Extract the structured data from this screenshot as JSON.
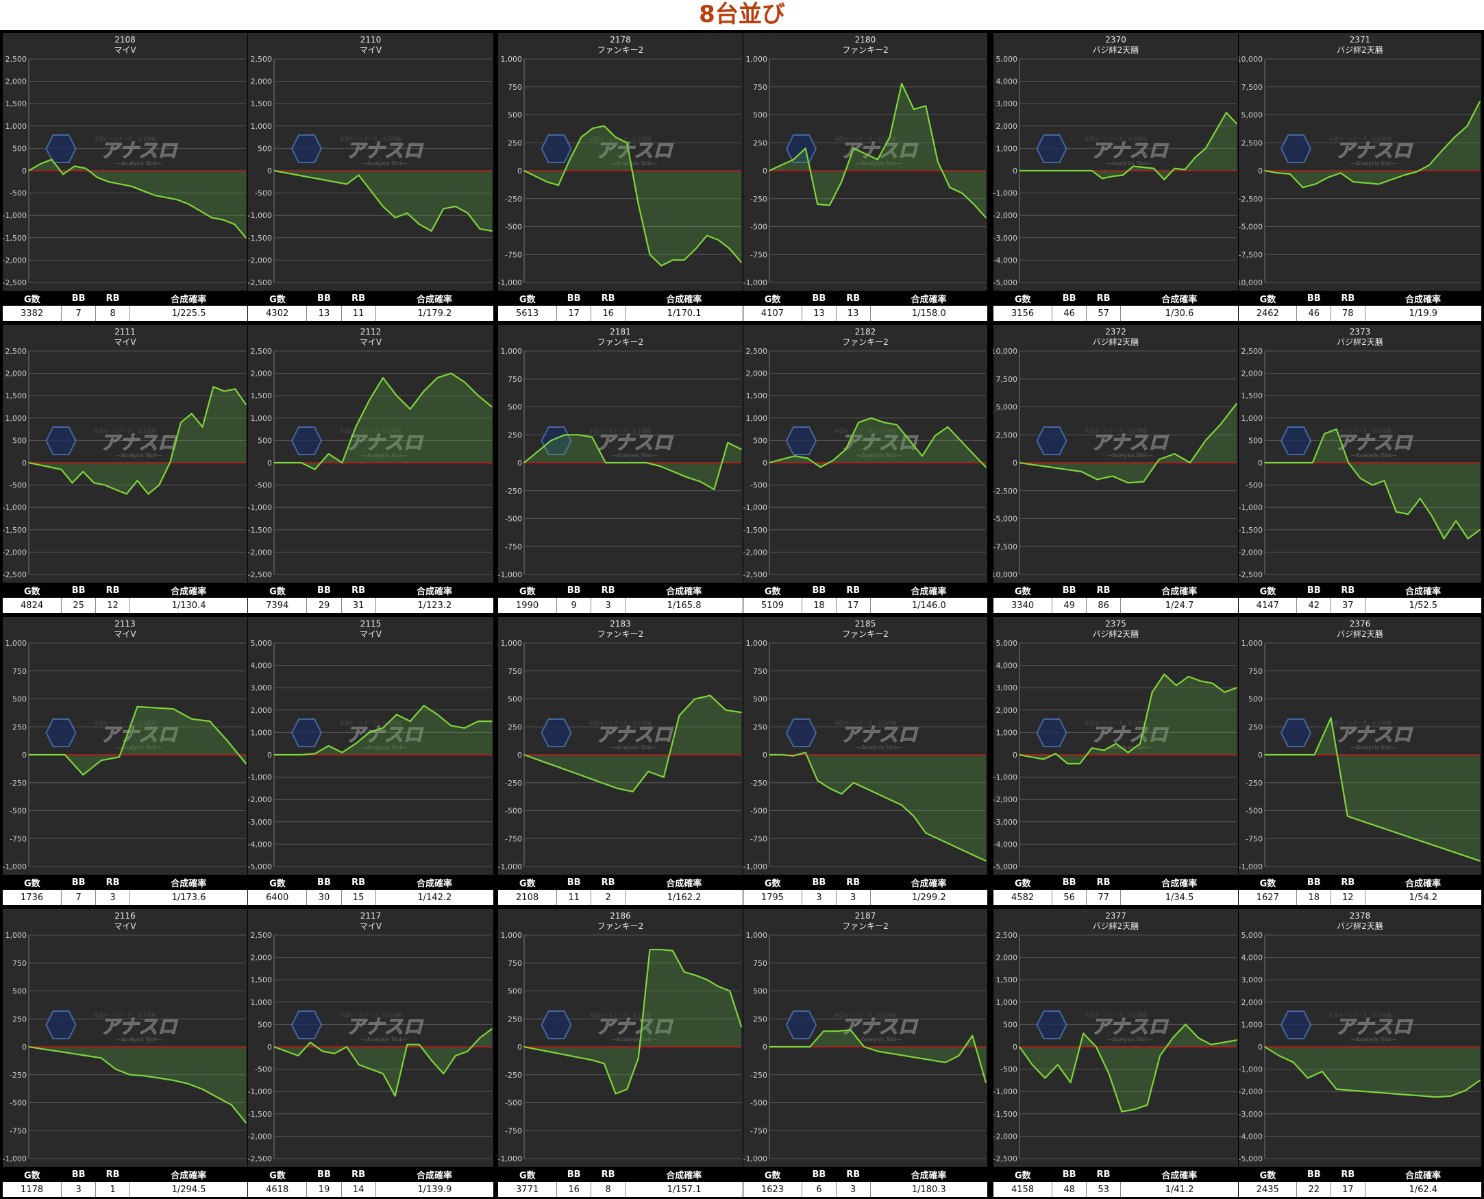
{
  "page_title": "8台並び",
  "watermark": {
    "main": "アナスロ",
    "sub": "―Analysis Slot―",
    "top": "全国ホールデータ・出玉情報"
  },
  "stat_headers": [
    "G数",
    "BB",
    "RB",
    "合成確率"
  ],
  "colors": {
    "line": "#7ed63a",
    "fill": "rgba(90,170,60,0.28)",
    "zero_line": "#c41a1a",
    "grid": "#575757",
    "panel_bg": "#2a2a2a",
    "title": "#b8400f"
  },
  "chart_data": [
    {
      "type": "area",
      "machine_no": "2108",
      "machine_name": "マイV",
      "ylim": [
        -2500,
        2500
      ],
      "y_ticks": [
        "2,500",
        "2,000",
        "1,500",
        "1,000",
        "500",
        "0",
        "-500",
        "-1,000",
        "-1,500",
        "-2,000",
        "-2,500"
      ],
      "values": [
        0,
        150,
        250,
        -80,
        100,
        50,
        -150,
        -250,
        -300,
        -350,
        -450,
        -550,
        -600,
        -650,
        -750,
        -900,
        -1050,
        -1100,
        -1200,
        -1500
      ],
      "stats": {
        "g": "3382",
        "bb": "7",
        "rb": "8",
        "prob": "1/225.5"
      }
    },
    {
      "type": "area",
      "machine_no": "2110",
      "machine_name": "マイV",
      "ylim": [
        -2500,
        2500
      ],
      "y_ticks": [
        "2,500",
        "2,000",
        "1,500",
        "1,000",
        "500",
        "0",
        "-500",
        "-1,000",
        "-1,500",
        "-2,000",
        "-2,500"
      ],
      "values": [
        0,
        -50,
        -100,
        -150,
        -200,
        -250,
        -300,
        -100,
        -450,
        -800,
        -1050,
        -950,
        -1200,
        -1350,
        -850,
        -800,
        -950,
        -1300,
        -1350
      ],
      "stats": {
        "g": "4302",
        "bb": "13",
        "rb": "11",
        "prob": "1/179.2"
      }
    },
    {
      "type": "area",
      "machine_no": "2178",
      "machine_name": "ファンキー2",
      "ylim": [
        -1000,
        1000
      ],
      "y_ticks": [
        "1,000",
        "750",
        "500",
        "250",
        "0",
        "-250",
        "-500",
        "-750",
        "-1,000"
      ],
      "values": [
        0,
        -50,
        -100,
        -130,
        100,
        300,
        380,
        400,
        300,
        250,
        -300,
        -750,
        -850,
        -800,
        -800,
        -700,
        -580,
        -620,
        -700,
        -820
      ],
      "stats": {
        "g": "5613",
        "bb": "17",
        "rb": "16",
        "prob": "1/170.1"
      }
    },
    {
      "type": "area",
      "machine_no": "2180",
      "machine_name": "ファンキー2",
      "ylim": [
        -1000,
        1000
      ],
      "y_ticks": [
        "1,000",
        "750",
        "500",
        "250",
        "0",
        "-250",
        "-500",
        "-750",
        "-1,000"
      ],
      "values": [
        0,
        50,
        100,
        200,
        -300,
        -310,
        -100,
        200,
        150,
        100,
        300,
        780,
        550,
        580,
        80,
        -150,
        -200,
        -300,
        -420
      ],
      "stats": {
        "g": "4107",
        "bb": "13",
        "rb": "13",
        "prob": "1/158.0"
      }
    },
    {
      "type": "area",
      "machine_no": "2370",
      "machine_name": "バジ絆2天膳",
      "ylim": [
        -5000,
        5000
      ],
      "y_ticks": [
        "5,000",
        "4,000",
        "3,000",
        "2,000",
        "1,000",
        "0",
        "-1,000",
        "-2,000",
        "-3,000",
        "-4,000",
        "-5,000"
      ],
      "values": [
        0,
        0,
        0,
        0,
        0,
        0,
        0,
        0,
        -350,
        -250,
        -200,
        200,
        150,
        100,
        -400,
        100,
        50,
        600,
        1000,
        1800,
        2600,
        2100
      ],
      "stats": {
        "g": "3156",
        "bb": "46",
        "rb": "57",
        "prob": "1/30.6"
      }
    },
    {
      "type": "area",
      "machine_no": "2371",
      "machine_name": "バジ絆2天膳",
      "ylim": [
        -10000,
        10000
      ],
      "y_ticks": [
        "10,000",
        "7,500",
        "5,000",
        "2,500",
        "0",
        "-2,500",
        "-5,000",
        "-7,500",
        "-10,000"
      ],
      "values": [
        0,
        -200,
        -300,
        -1500,
        -1200,
        -600,
        -200,
        -1000,
        -1100,
        -1200,
        -800,
        -400,
        -100,
        500,
        1800,
        3000,
        4000,
        6200
      ],
      "stats": {
        "g": "2462",
        "bb": "46",
        "rb": "78",
        "prob": "1/19.9"
      }
    },
    {
      "type": "area",
      "machine_no": "2111",
      "machine_name": "マイV",
      "ylim": [
        -2500,
        2500
      ],
      "y_ticks": [
        "2,500",
        "2,000",
        "1,500",
        "1,000",
        "500",
        "0",
        "-500",
        "-1,000",
        "-1,500",
        "-2,000",
        "-2,500"
      ],
      "values": [
        0,
        -50,
        -100,
        -150,
        -450,
        -200,
        -450,
        -500,
        -600,
        -700,
        -400,
        -700,
        -500,
        0,
        900,
        1100,
        800,
        1700,
        1600,
        1650,
        1300
      ],
      "stats": {
        "g": "4824",
        "bb": "25",
        "rb": "12",
        "prob": "1/130.4"
      }
    },
    {
      "type": "area",
      "machine_no": "2112",
      "machine_name": "マイV",
      "ylim": [
        -2500,
        2500
      ],
      "y_ticks": [
        "2,500",
        "2,000",
        "1,500",
        "1,000",
        "500",
        "0",
        "-500",
        "-1,000",
        "-1,500",
        "-2,000",
        "-2,500"
      ],
      "values": [
        0,
        0,
        0,
        -150,
        200,
        0,
        800,
        1400,
        1900,
        1500,
        1200,
        1600,
        1900,
        2000,
        1800,
        1500,
        1250
      ],
      "stats": {
        "g": "7394",
        "bb": "29",
        "rb": "31",
        "prob": "1/123.2"
      }
    },
    {
      "type": "area",
      "machine_no": "2181",
      "machine_name": "ファンキー2",
      "ylim": [
        -1000,
        1000
      ],
      "y_ticks": [
        "1,000",
        "750",
        "500",
        "250",
        "0",
        "-250",
        "-500",
        "-750",
        "-1,000"
      ],
      "values": [
        0,
        100,
        200,
        250,
        250,
        230,
        0,
        0,
        0,
        0,
        -30,
        -80,
        -130,
        -170,
        -240,
        180,
        120
      ],
      "stats": {
        "g": "1990",
        "bb": "9",
        "rb": "3",
        "prob": "1/165.8"
      }
    },
    {
      "type": "area",
      "machine_no": "2182",
      "machine_name": "ファンキー2",
      "ylim": [
        -2500,
        2500
      ],
      "y_ticks": [
        "2,500",
        "2,000",
        "1,500",
        "1,000",
        "500",
        "0",
        "-500",
        "-1,000",
        "-1,500",
        "-2,000",
        "-2,500"
      ],
      "values": [
        0,
        80,
        150,
        100,
        -100,
        50,
        300,
        900,
        1000,
        900,
        850,
        500,
        150,
        600,
        800,
        500,
        200,
        -100
      ],
      "stats": {
        "g": "5109",
        "bb": "18",
        "rb": "17",
        "prob": "1/146.0"
      }
    },
    {
      "type": "area",
      "machine_no": "2372",
      "machine_name": "バジ絆2天膳",
      "ylim": [
        -10000,
        10000
      ],
      "y_ticks": [
        "10,000",
        "7,500",
        "5,000",
        "2,500",
        "0",
        "-2,500",
        "-5,000",
        "-7,500",
        "-10,000"
      ],
      "values": [
        0,
        -200,
        -400,
        -600,
        -800,
        -1500,
        -1200,
        -1800,
        -1700,
        300,
        800,
        0,
        2000,
        3500,
        5300
      ],
      "stats": {
        "g": "3340",
        "bb": "49",
        "rb": "86",
        "prob": "1/24.7"
      }
    },
    {
      "type": "area",
      "machine_no": "2373",
      "machine_name": "バジ絆2天膳",
      "ylim": [
        -2500,
        2500
      ],
      "y_ticks": [
        "2,500",
        "2,000",
        "1,500",
        "1,000",
        "500",
        "0",
        "-500",
        "-1,000",
        "-1,500",
        "-2,000",
        "-2,500"
      ],
      "values": [
        0,
        0,
        0,
        0,
        0,
        650,
        750,
        0,
        -350,
        -500,
        -400,
        -1100,
        -1150,
        -800,
        -1200,
        -1700,
        -1300,
        -1700,
        -1500
      ],
      "stats": {
        "g": "4147",
        "bb": "42",
        "rb": "37",
        "prob": "1/52.5"
      }
    },
    {
      "type": "area",
      "machine_no": "2113",
      "machine_name": "マイV",
      "ylim": [
        -1000,
        1000
      ],
      "y_ticks": [
        "1,000",
        "750",
        "500",
        "250",
        "0",
        "-250",
        "-500",
        "-750",
        "-1,000"
      ],
      "values": [
        0,
        0,
        0,
        -180,
        -50,
        -20,
        430,
        420,
        410,
        320,
        300,
        120,
        -80
      ],
      "stats": {
        "g": "1736",
        "bb": "7",
        "rb": "3",
        "prob": "1/173.6"
      }
    },
    {
      "type": "area",
      "machine_no": "2115",
      "machine_name": "マイV",
      "ylim": [
        -5000,
        5000
      ],
      "y_ticks": [
        "5,000",
        "4,000",
        "3,000",
        "2,000",
        "1,000",
        "0",
        "-1,000",
        "-2,000",
        "-3,000",
        "-4,000",
        "-5,000"
      ],
      "values": [
        0,
        0,
        0,
        50,
        400,
        100,
        500,
        1000,
        1200,
        1800,
        1500,
        2200,
        1800,
        1300,
        1200,
        1500,
        1500
      ],
      "stats": {
        "g": "6400",
        "bb": "30",
        "rb": "15",
        "prob": "1/142.2"
      }
    },
    {
      "type": "area",
      "machine_no": "2183",
      "machine_name": "ファンキー2",
      "ylim": [
        -1000,
        1000
      ],
      "y_ticks": [
        "1,000",
        "750",
        "500",
        "250",
        "0",
        "-250",
        "-500",
        "-750",
        "-1,000"
      ],
      "values": [
        0,
        -50,
        -100,
        -150,
        -200,
        -250,
        -300,
        -330,
        -150,
        -200,
        350,
        500,
        530,
        400,
        380
      ],
      "stats": {
        "g": "2108",
        "bb": "11",
        "rb": "2",
        "prob": "1/162.2"
      }
    },
    {
      "type": "area",
      "machine_no": "2185",
      "machine_name": "ファンキー2",
      "ylim": [
        -1000,
        1000
      ],
      "y_ticks": [
        "1,000",
        "750",
        "500",
        "250",
        "0",
        "-250",
        "-500",
        "-750",
        "-1,000"
      ],
      "values": [
        0,
        0,
        -10,
        20,
        -230,
        -300,
        -350,
        -250,
        -300,
        -350,
        -400,
        -450,
        -550,
        -700,
        -750,
        -800,
        -850,
        -900,
        -950
      ],
      "stats": {
        "g": "1795",
        "bb": "3",
        "rb": "3",
        "prob": "1/299.2"
      }
    },
    {
      "type": "area",
      "machine_no": "2375",
      "machine_name": "バジ絆2天膳",
      "ylim": [
        -5000,
        5000
      ],
      "y_ticks": [
        "5,000",
        "4,000",
        "3,000",
        "2,000",
        "1,000",
        "0",
        "-1,000",
        "-2,000",
        "-3,000",
        "-4,000",
        "-5,000"
      ],
      "values": [
        0,
        -100,
        -200,
        50,
        -400,
        -400,
        300,
        200,
        500,
        100,
        500,
        2800,
        3600,
        3100,
        3500,
        3300,
        3200,
        2800,
        3000
      ],
      "stats": {
        "g": "4582",
        "bb": "56",
        "rb": "77",
        "prob": "1/34.5"
      }
    },
    {
      "type": "area",
      "machine_no": "2376",
      "machine_name": "バジ絆2天膳",
      "ylim": [
        -1000,
        1000
      ],
      "y_ticks": [
        "1,000",
        "750",
        "500",
        "250",
        "0",
        "-250",
        "-500",
        "-750",
        "-1,000"
      ],
      "values": [
        0,
        0,
        0,
        0,
        330,
        -550,
        -600,
        -650,
        -700,
        -750,
        -800,
        -850,
        -900,
        -950
      ],
      "stats": {
        "g": "1627",
        "bb": "18",
        "rb": "12",
        "prob": "1/54.2"
      }
    },
    {
      "type": "area",
      "machine_no": "2116",
      "machine_name": "マイV",
      "ylim": [
        -1000,
        1000
      ],
      "y_ticks": [
        "1,000",
        "750",
        "500",
        "250",
        "0",
        "-250",
        "-500",
        "-750",
        "-1,000"
      ],
      "values": [
        0,
        -20,
        -40,
        -60,
        -80,
        -100,
        -200,
        -250,
        -260,
        -280,
        -300,
        -330,
        -380,
        -450,
        -520,
        -680
      ],
      "stats": {
        "g": "1178",
        "bb": "3",
        "rb": "1",
        "prob": "1/294.5"
      }
    },
    {
      "type": "area",
      "machine_no": "2117",
      "machine_name": "マイV",
      "ylim": [
        -2500,
        2500
      ],
      "y_ticks": [
        "2,500",
        "2,000",
        "1,500",
        "1,000",
        "500",
        "0",
        "-500",
        "-1,000",
        "-1,500",
        "-2,000",
        "-2,500"
      ],
      "values": [
        0,
        -100,
        -200,
        100,
        -100,
        -150,
        0,
        -400,
        -500,
        -600,
        -1100,
        50,
        50,
        -300,
        -600,
        -200,
        -100,
        200,
        400
      ],
      "stats": {
        "g": "4618",
        "bb": "19",
        "rb": "14",
        "prob": "1/139.9"
      }
    },
    {
      "type": "area",
      "machine_no": "2186",
      "machine_name": "ファンキー2",
      "ylim": [
        -1000,
        1000
      ],
      "y_ticks": [
        "1,000",
        "750",
        "500",
        "250",
        "0",
        "-250",
        "-500",
        "-750",
        "-1,000"
      ],
      "values": [
        0,
        -20,
        -40,
        -60,
        -80,
        -100,
        -120,
        -150,
        -420,
        -380,
        -100,
        870,
        870,
        860,
        670,
        640,
        600,
        540,
        500,
        180
      ],
      "stats": {
        "g": "3771",
        "bb": "16",
        "rb": "8",
        "prob": "1/157.1"
      }
    },
    {
      "type": "area",
      "machine_no": "2187",
      "machine_name": "ファンキー2",
      "ylim": [
        -1000,
        1000
      ],
      "y_ticks": [
        "1,000",
        "750",
        "500",
        "250",
        "0",
        "-250",
        "-500",
        "-750",
        "-1,000"
      ],
      "values": [
        0,
        0,
        0,
        0,
        140,
        140,
        150,
        0,
        -40,
        -60,
        -80,
        -100,
        -120,
        -140,
        -80,
        100,
        -320
      ],
      "stats": {
        "g": "1623",
        "bb": "6",
        "rb": "3",
        "prob": "1/180.3"
      }
    },
    {
      "type": "area",
      "machine_no": "2377",
      "machine_name": "バジ絆2天膳",
      "ylim": [
        -2500,
        2500
      ],
      "y_ticks": [
        "2,500",
        "2,000",
        "1,500",
        "1,000",
        "500",
        "0",
        "-500",
        "-1,000",
        "-1,500",
        "-2,000",
        "-2,500"
      ],
      "values": [
        0,
        -400,
        -700,
        -400,
        -800,
        300,
        0,
        -600,
        -1450,
        -1400,
        -1300,
        -200,
        200,
        500,
        200,
        50,
        100,
        150
      ],
      "stats": {
        "g": "4158",
        "bb": "48",
        "rb": "53",
        "prob": "1/41.2"
      }
    },
    {
      "type": "area",
      "machine_no": "2378",
      "machine_name": "バジ絆2天膳",
      "ylim": [
        -5000,
        5000
      ],
      "y_ticks": [
        "5,000",
        "4,000",
        "3,000",
        "2,000",
        "1,000",
        "0",
        "-1,000",
        "-2,000",
        "-3,000",
        "-4,000",
        "-5,000"
      ],
      "values": [
        0,
        -400,
        -700,
        -1400,
        -1100,
        -1900,
        -1950,
        -2000,
        -2050,
        -2100,
        -2150,
        -2200,
        -2250,
        -2200,
        -1950,
        -1500
      ],
      "stats": {
        "g": "2435",
        "bb": "22",
        "rb": "17",
        "prob": "1/62.4"
      }
    }
  ]
}
